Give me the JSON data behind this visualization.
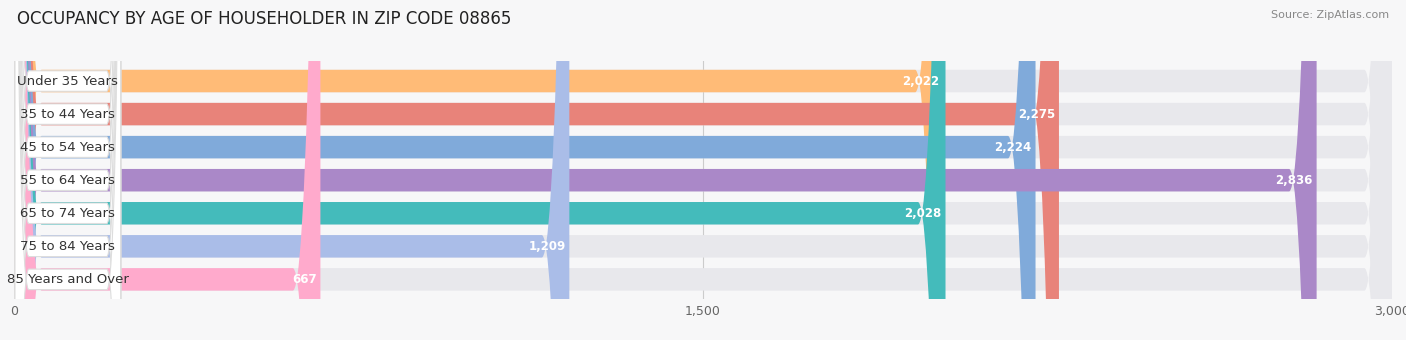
{
  "title": "OCCUPANCY BY AGE OF HOUSEHOLDER IN ZIP CODE 08865",
  "source": "Source: ZipAtlas.com",
  "categories": [
    "Under 35 Years",
    "35 to 44 Years",
    "45 to 54 Years",
    "55 to 64 Years",
    "65 to 74 Years",
    "75 to 84 Years",
    "85 Years and Over"
  ],
  "values": [
    2022,
    2275,
    2224,
    2836,
    2028,
    1209,
    667
  ],
  "bar_colors": [
    "#FFBB77",
    "#E8837A",
    "#80AADA",
    "#AA88C8",
    "#44BBBB",
    "#AABDE8",
    "#FFAACC"
  ],
  "bg_bar_color": "#E8E8EC",
  "xlim": [
    0,
    3000
  ],
  "xticks": [
    0,
    1500,
    3000
  ],
  "xtick_labels": [
    "0",
    "1,500",
    "3,000"
  ],
  "background_color": "#F7F7F8",
  "title_fontsize": 12,
  "label_fontsize": 9.5,
  "value_fontsize": 8.5,
  "bar_height": 0.68,
  "bar_gap": 0.32
}
